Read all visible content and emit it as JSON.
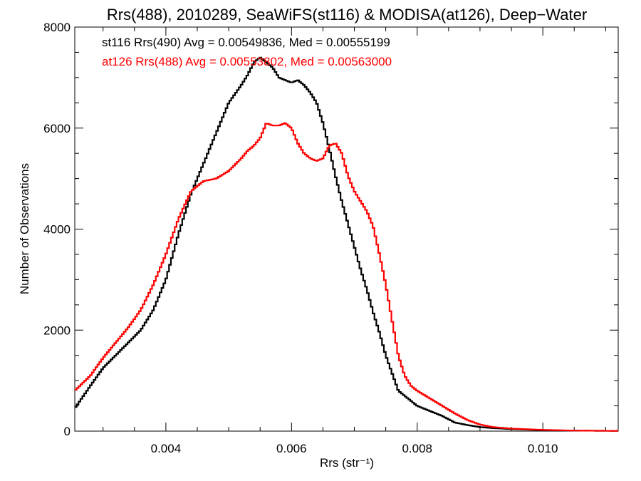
{
  "chart_data": {
    "type": "line",
    "step": true,
    "title": "Rrs(488), 2010289, SeaWiFS(st116) & MODISA(at126), Deep−Water",
    "xlabel": "Rrs (str⁻¹)",
    "ylabel": "Number of Observations",
    "xlim": [
      0.00255,
      0.0112
    ],
    "ylim": [
      0,
      8000
    ],
    "x_ticks": [
      0.004,
      0.006,
      0.008,
      0.01
    ],
    "x_tick_labels": [
      "0.004",
      "0.006",
      "0.008",
      "0.010"
    ],
    "y_ticks": [
      0,
      2000,
      4000,
      6000,
      8000
    ],
    "y_tick_labels": [
      "0",
      "2000",
      "4000",
      "6000",
      "8000"
    ],
    "legend_placement": "top-left",
    "series": [
      {
        "name": "st116",
        "legend_text": "st116 Rrs(490) Avg = 0.00549836, Med = 0.00555199",
        "color": "#000000",
        "x": [
          0.00255,
          0.0028,
          0.003,
          0.0032,
          0.0034,
          0.0036,
          0.0038,
          0.004,
          0.0042,
          0.0044,
          0.0046,
          0.0048,
          0.005,
          0.0052,
          0.0053,
          0.0054,
          0.0055,
          0.0056,
          0.0057,
          0.0058,
          0.0059,
          0.006,
          0.0061,
          0.0062,
          0.0063,
          0.0064,
          0.0065,
          0.0066,
          0.0067,
          0.0068,
          0.0069,
          0.007,
          0.0071,
          0.0072,
          0.0073,
          0.0074,
          0.0075,
          0.0076,
          0.0077,
          0.0078,
          0.0079,
          0.008,
          0.0082,
          0.0084,
          0.0086,
          0.0088,
          0.009,
          0.0092,
          0.0095,
          0.01,
          0.0105,
          0.0112
        ],
        "y": [
          450,
          900,
          1250,
          1500,
          1750,
          2000,
          2400,
          3000,
          3900,
          4700,
          5300,
          5900,
          6500,
          6850,
          7050,
          7300,
          7400,
          7300,
          7200,
          7000,
          6950,
          6900,
          6950,
          6850,
          6700,
          6500,
          6100,
          5600,
          5050,
          4550,
          4100,
          3650,
          3200,
          2800,
          2350,
          1950,
          1500,
          1150,
          800,
          700,
          600,
          500,
          400,
          300,
          170,
          120,
          80,
          60,
          40,
          20,
          10,
          5
        ]
      },
      {
        "name": "at126",
        "legend_text": "at126 Rrs(488) Avg = 0.00553802, Med = 0.00563000",
        "color": "#ff0000",
        "x": [
          0.00255,
          0.0028,
          0.003,
          0.0032,
          0.0034,
          0.0036,
          0.0038,
          0.004,
          0.0042,
          0.0044,
          0.0046,
          0.0048,
          0.005,
          0.0052,
          0.0053,
          0.0054,
          0.0055,
          0.0056,
          0.0057,
          0.0058,
          0.0059,
          0.006,
          0.0061,
          0.0062,
          0.0063,
          0.0064,
          0.0065,
          0.0066,
          0.0067,
          0.0068,
          0.0069,
          0.007,
          0.0071,
          0.0072,
          0.0073,
          0.0074,
          0.0075,
          0.0076,
          0.0077,
          0.0078,
          0.0079,
          0.008,
          0.0082,
          0.0084,
          0.0086,
          0.0088,
          0.009,
          0.0092,
          0.0095,
          0.01,
          0.0105,
          0.0112
        ],
        "y": [
          800,
          1100,
          1450,
          1750,
          2050,
          2400,
          2900,
          3500,
          4200,
          4750,
          4950,
          5000,
          5150,
          5400,
          5550,
          5650,
          5800,
          6100,
          6050,
          6050,
          6100,
          6000,
          5700,
          5500,
          5400,
          5350,
          5400,
          5650,
          5700,
          5500,
          5050,
          4750,
          4550,
          4350,
          4050,
          3500,
          2900,
          2200,
          1500,
          1100,
          900,
          800,
          650,
          500,
          350,
          220,
          130,
          80,
          50,
          25,
          10,
          5
        ]
      }
    ]
  }
}
